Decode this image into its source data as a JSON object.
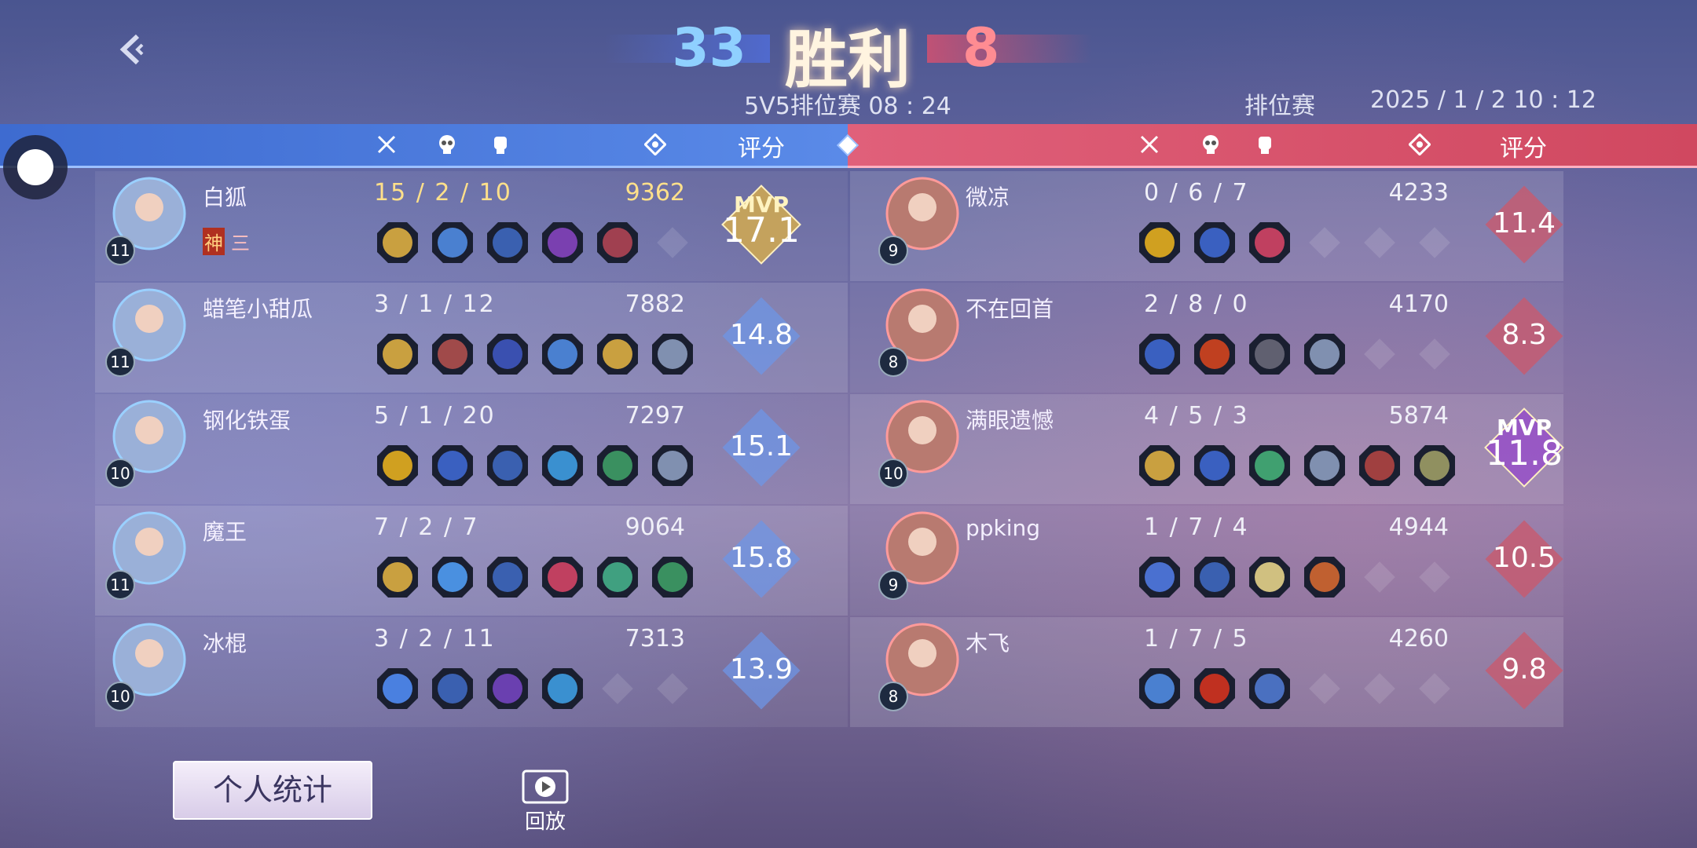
{
  "header": {
    "blue_score": "33",
    "result": "胜利",
    "red_score": "8",
    "mode_time": "5V5排位赛 08 : 24",
    "match_type": "排位赛",
    "datetime": "2025 / 1 / 2 10 : 12"
  },
  "blue_team": {
    "rating_header": "评分",
    "players": [
      {
        "name": "白狐",
        "level": 11,
        "kda": "15 / 2 / 10",
        "gold": 9362,
        "rating": 17.1,
        "mvp": "MVP",
        "badges": [
          "神",
          "三"
        ]
      },
      {
        "name": "蜡笔小甜瓜",
        "level": 11,
        "kda": "3 / 1 / 12",
        "gold": 7882,
        "rating": 14.8
      },
      {
        "name": "钢化铁蛋",
        "level": 10,
        "kda": "5 / 1 / 20",
        "gold": 7297,
        "rating": 15.1
      },
      {
        "name": "魔王",
        "level": 11,
        "kda": "7 / 2 / 7",
        "gold": 9064,
        "rating": 15.8
      },
      {
        "name": "冰棍",
        "level": 10,
        "kda": "3 / 2 / 11",
        "gold": 7313,
        "rating": 13.9
      }
    ]
  },
  "red_team": {
    "rating_header": "评分",
    "players": [
      {
        "name": "微凉",
        "level": 9,
        "kda": "0 / 6 / 7",
        "gold": 4233,
        "rating": 11.4
      },
      {
        "name": "不在回首",
        "level": 8,
        "kda": "2 / 8 / 0",
        "gold": 4170,
        "rating": 8.3
      },
      {
        "name": "满眼遗憾",
        "level": 10,
        "kda": "4 / 5 / 3",
        "gold": 5874,
        "rating": 11.8,
        "mvp": "MVP"
      },
      {
        "name": "ppking",
        "level": 9,
        "kda": "1 / 7 / 4",
        "gold": 4944,
        "rating": 10.5
      },
      {
        "name": "木飞",
        "level": 8,
        "kda": "1 / 7 / 5",
        "gold": 4260,
        "rating": 9.8
      }
    ]
  },
  "buttons": {
    "personal_stats": "个人统计",
    "replay": "回放"
  }
}
